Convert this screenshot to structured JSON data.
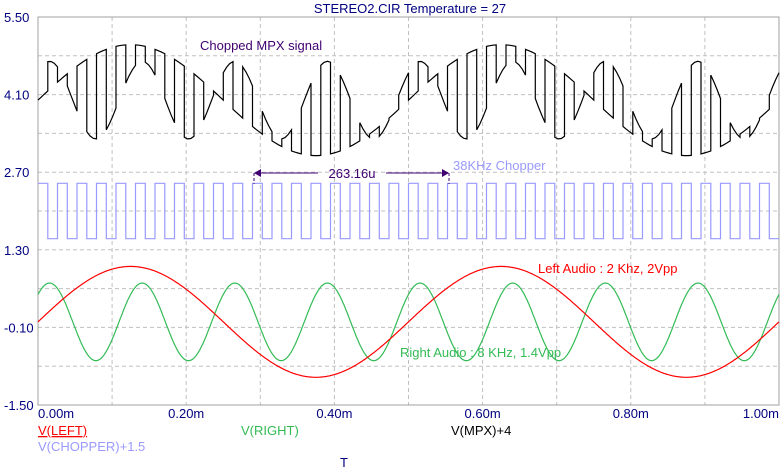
{
  "chart_data": {
    "type": "line",
    "title": "STEREO2.CIR Temperature = 27",
    "xlabel": "T",
    "xlim": [
      0,
      1.0
    ],
    "ylim": [
      -1.5,
      5.5
    ],
    "grid": true,
    "x_ticks": [
      "0.00m",
      "0.20m",
      "0.40m",
      "0.60m",
      "0.80m",
      "1.00m"
    ],
    "y_ticks": [
      "5.50",
      "4.10",
      "2.70",
      "1.30",
      "-0.10",
      "-1.50"
    ],
    "x_unit": "ms",
    "series": [
      {
        "name": "V(LEFT)",
        "color": "#ff0000",
        "shape": "sine",
        "frequency_khz": 2,
        "amplitude": 1.0,
        "phase_deg": 0,
        "offset": 0
      },
      {
        "name": "V(RIGHT)",
        "color": "#33bb55",
        "shape": "sine",
        "frequency_khz": 8,
        "amplitude": 0.7,
        "phase_deg": 45,
        "offset": 0
      },
      {
        "name": "V(MPX)+4",
        "color": "#000000",
        "shape": "chopped: V(LEFT) while chopper high, V(RIGHT) while low",
        "offset": 4
      },
      {
        "name": "V(CHOPPER)+1.5",
        "color": "#9999ff",
        "shape": "square",
        "frequency_khz": 38,
        "low": 0,
        "high": 1,
        "offset": 1.5
      }
    ],
    "annotations": {
      "mpx": "Chopped MPX signal",
      "chopper": "38KHz Chopper",
      "left": "Left Audio : 2 Khz, 2Vpp",
      "right": "Right Audio : 8 KHz, 1.4Vpp",
      "period_marker": {
        "label": "263.16u",
        "from_ms": 0.2928,
        "to_ms": 0.556
      }
    }
  },
  "colors": {
    "axis_text": "#000080",
    "annotation_purple": "#400070",
    "grid": "#c0c0c0"
  }
}
